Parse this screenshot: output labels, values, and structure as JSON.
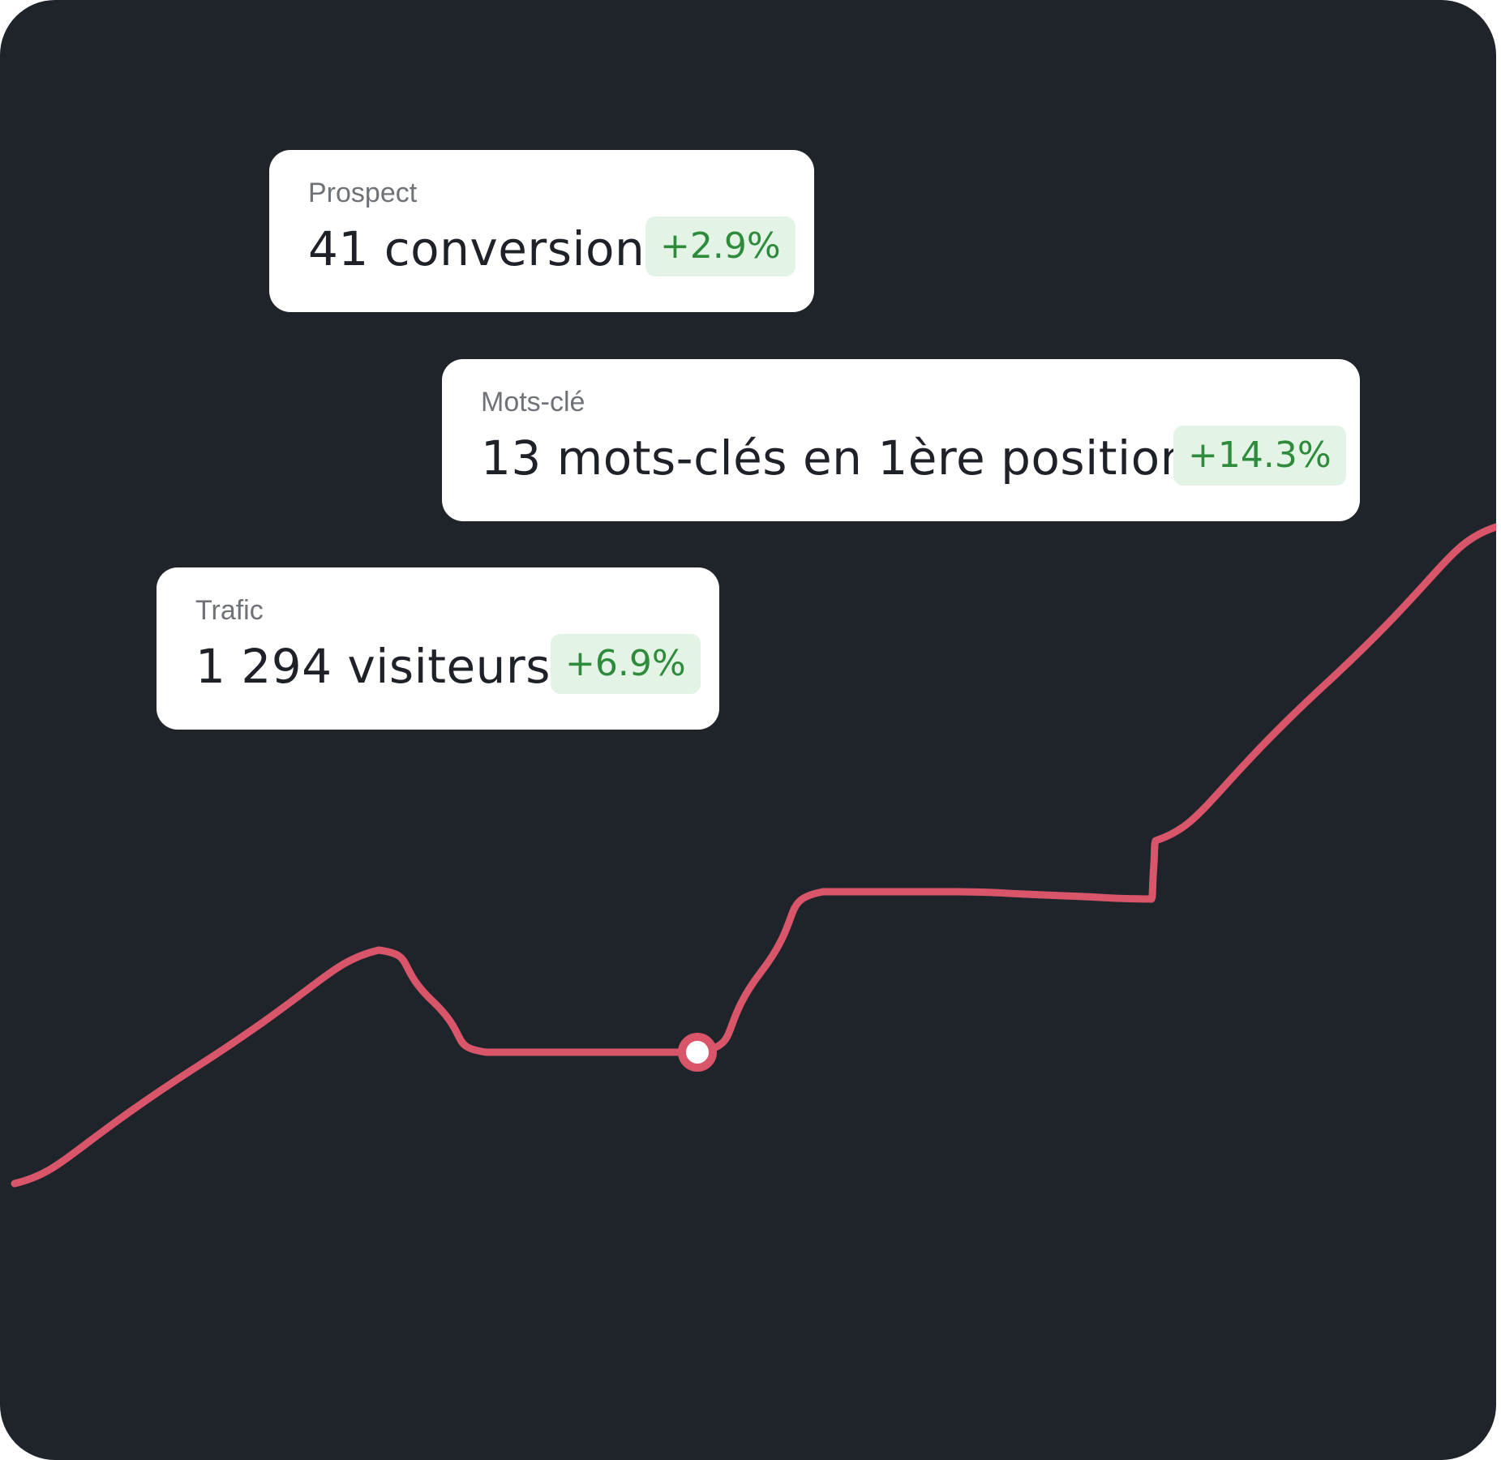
{
  "colors": {
    "background": "#1f242b",
    "card": "#ffffff",
    "line": "#d9556a",
    "badge_bg": "#e3f3e5",
    "badge_text": "#2e8b3c",
    "hatch": "#9aa3ad"
  },
  "cards": [
    {
      "label": "Prospect",
      "value": "41 conversion",
      "change": "+2.9%"
    },
    {
      "label": "Mots-clé",
      "value": "13 mots-clés en 1ère position",
      "change": "+14.3%"
    },
    {
      "label": "Trafic",
      "value": "1 294 visiteurs",
      "change": "+6.9%"
    }
  ],
  "chart_data": {
    "type": "area",
    "x": [
      0,
      1,
      2,
      3,
      4,
      5,
      6,
      7,
      8
    ],
    "values": [
      10,
      42,
      28,
      28,
      50,
      50,
      49,
      57,
      100
    ],
    "highlight_index": 3,
    "ylim": [
      0,
      100
    ],
    "grid": false
  }
}
